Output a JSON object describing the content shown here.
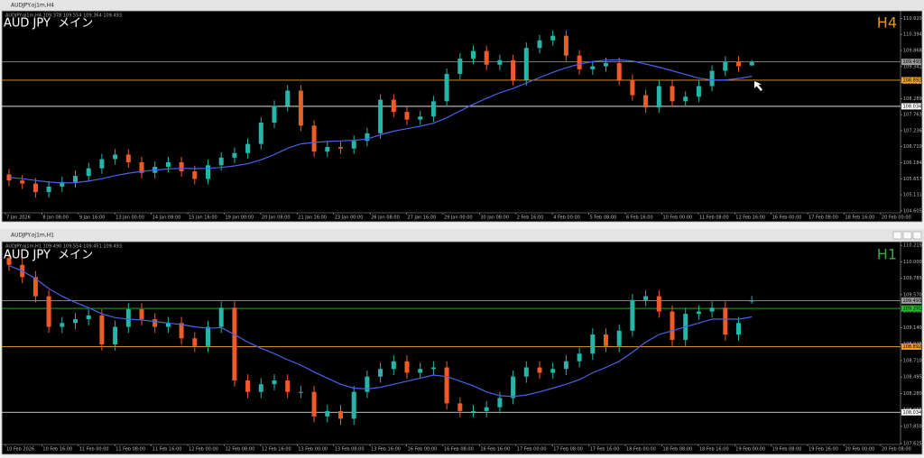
{
  "chart_data": [
    {
      "type": "candlestick",
      "window_title": "AUDJPY.oj1m,H4",
      "info": "AUDJPY.oj1m,H4 109.378 109.554 109.364 109.493",
      "symbol_label": "AUD JPY  メイン",
      "timeframe": "H4",
      "timeframe_color": "#e8961e",
      "up_color": "#26b5a8",
      "down_color": "#f05a28",
      "grid": false,
      "ylim": [
        104.57,
        111.11
      ],
      "yticks": [
        {
          "value": 110.92,
          "label": "110.920"
        },
        {
          "value": 110.394,
          "label": "110.394"
        },
        {
          "value": 109.868,
          "label": "109.868"
        },
        {
          "value": 109.341,
          "label": "109.341"
        },
        {
          "value": 108.815,
          "label": "108.815"
        },
        {
          "value": 108.289,
          "label": "108.289"
        },
        {
          "value": 107.763,
          "label": "107.763"
        },
        {
          "value": 107.236,
          "label": "107.236"
        },
        {
          "value": 106.71,
          "label": "106.710"
        },
        {
          "value": 106.184,
          "label": "106.184"
        },
        {
          "value": 105.657,
          "label": "105.657"
        },
        {
          "value": 105.131,
          "label": "105.131"
        },
        {
          "value": 104.605,
          "label": "104.605"
        }
      ],
      "levels": [
        {
          "value": 109.493,
          "label": "109.493",
          "color": "#9a9a9a"
        },
        {
          "value": 108.892,
          "label": "108.892",
          "color": "#f0a020"
        },
        {
          "value": 108.034,
          "label": "108.034",
          "color": "#ffffff"
        }
      ],
      "x_labels": [
        "7 Jan 2026",
        "8 Jan 08:00",
        "9 Jan 16:00",
        "13 Jan 00:00",
        "14 Jan 08:00",
        "15 Jan 16:00",
        "19 Jan 00:00",
        "20 Jan 08:00",
        "21 Jan 16:00",
        "23 Jan 00:00",
        "26 Jan 08:00",
        "27 Jan 16:00",
        "29 Jan 00:00",
        "30 Jan 08:00",
        "2 Feb 16:00",
        "4 Feb 00:00",
        "5 Feb 08:00",
        "6 Feb 16:00",
        "10 Feb 00:00",
        "11 Feb 08:00",
        "12 Feb 16:00",
        "16 Feb 00:00",
        "17 Feb 08:00",
        "18 Feb 16:00",
        "20 Feb 00:00"
      ],
      "open": [
        105.8,
        105.6,
        105.5,
        105.22,
        105.4,
        105.55,
        105.75,
        106.0,
        106.3,
        106.45,
        106.2,
        105.85,
        106.05,
        106.2,
        105.9,
        105.65,
        106.1,
        106.35,
        106.5,
        106.8,
        107.5,
        108.05,
        108.55,
        107.4,
        106.55,
        106.7,
        106.65,
        106.9,
        107.15,
        108.25,
        107.85,
        107.6,
        107.7,
        108.2,
        109.1,
        109.6,
        109.85,
        109.4,
        109.55,
        108.9,
        109.95,
        110.2,
        110.35,
        109.7,
        109.25,
        109.35,
        109.45,
        108.9,
        108.4,
        108.0,
        108.7,
        108.2,
        108.35,
        108.7,
        109.2,
        109.5,
        109.378
      ],
      "high": [
        105.98,
        105.78,
        105.68,
        105.58,
        105.73,
        105.93,
        106.18,
        106.48,
        106.63,
        106.63,
        106.38,
        106.23,
        106.38,
        106.38,
        106.08,
        106.28,
        106.53,
        106.68,
        106.98,
        107.68,
        108.23,
        108.73,
        108.73,
        107.58,
        106.88,
        106.88,
        107.08,
        107.33,
        108.43,
        108.43,
        108.03,
        107.88,
        108.38,
        109.28,
        109.78,
        110.03,
        110.03,
        109.73,
        109.73,
        110.13,
        110.38,
        110.53,
        110.53,
        109.88,
        109.53,
        109.63,
        109.63,
        109.08,
        108.58,
        108.88,
        108.88,
        108.53,
        108.88,
        109.38,
        109.68,
        109.68,
        109.554
      ],
      "low": [
        105.42,
        105.32,
        105.04,
        105.04,
        105.22,
        105.37,
        105.57,
        105.82,
        106.12,
        106.02,
        105.67,
        105.67,
        105.87,
        105.72,
        105.47,
        105.47,
        105.92,
        106.17,
        106.32,
        106.62,
        107.32,
        107.87,
        107.22,
        106.37,
        106.37,
        106.47,
        106.47,
        106.72,
        106.97,
        107.67,
        107.42,
        107.42,
        107.52,
        108.02,
        108.92,
        109.42,
        109.22,
        109.22,
        108.72,
        108.72,
        109.77,
        110.02,
        109.52,
        109.07,
        109.07,
        109.17,
        108.72,
        108.22,
        107.82,
        107.82,
        108.02,
        108.02,
        108.17,
        108.52,
        109.02,
        109.17,
        109.364
      ],
      "close": [
        105.6,
        105.5,
        105.22,
        105.4,
        105.55,
        105.75,
        106.0,
        106.3,
        106.45,
        106.2,
        105.85,
        106.05,
        106.2,
        105.9,
        105.65,
        106.1,
        106.35,
        106.5,
        106.8,
        107.5,
        108.05,
        108.55,
        107.4,
        106.55,
        106.7,
        106.65,
        106.9,
        107.15,
        108.25,
        107.85,
        107.6,
        107.7,
        108.2,
        109.1,
        109.6,
        109.85,
        109.4,
        109.55,
        108.9,
        109.95,
        110.2,
        110.35,
        109.7,
        109.25,
        109.35,
        109.45,
        108.9,
        108.4,
        108.0,
        108.7,
        108.2,
        108.35,
        108.7,
        109.2,
        109.5,
        109.35,
        109.493
      ],
      "ma": {
        "color": "#4a62e8",
        "values": [
          105.7,
          105.66,
          105.6,
          105.55,
          105.52,
          105.53,
          105.58,
          105.66,
          105.76,
          105.84,
          105.9,
          105.94,
          105.98,
          106.0,
          105.99,
          106.0,
          106.03,
          106.08,
          106.15,
          106.28,
          106.45,
          106.66,
          106.8,
          106.85,
          106.88,
          106.9,
          106.92,
          106.96,
          107.1,
          107.22,
          107.3,
          107.38,
          107.48,
          107.66,
          107.88,
          108.1,
          108.3,
          108.48,
          108.62,
          108.8,
          108.98,
          109.15,
          109.3,
          109.42,
          109.5,
          109.55,
          109.56,
          109.52,
          109.42,
          109.32,
          109.2,
          109.08,
          108.96,
          108.9,
          108.9,
          108.95,
          109.02
        ]
      }
    },
    {
      "type": "candlestick",
      "window_title": "AUDJPY.oj1m,H1",
      "info": "AUDJPY.oj1m,H1 109.490 109.554 109.451 109.493",
      "symbol_label": "AUD JPY  メイン",
      "timeframe": "H1",
      "timeframe_color": "#3aa84a",
      "up_color": "#26b5a8",
      "down_color": "#f05a28",
      "grid": false,
      "ylim": [
        107.625,
        110.24
      ],
      "yticks": [
        {
          "value": 110.215,
          "label": "110.215"
        },
        {
          "value": 110,
          "label": "110.000"
        },
        {
          "value": 109.785,
          "label": "109.785"
        },
        {
          "value": 109.57,
          "label": "109.570"
        },
        {
          "value": 109.355,
          "label": "109.355"
        },
        {
          "value": 109.14,
          "label": "109.140"
        },
        {
          "value": 108.925,
          "label": "108.925"
        },
        {
          "value": 108.71,
          "label": "108.710"
        },
        {
          "value": 108.495,
          "label": "108.495"
        },
        {
          "value": 108.28,
          "label": "108.280"
        },
        {
          "value": 108.065,
          "label": "108.065"
        },
        {
          "value": 107.85,
          "label": "107.850"
        },
        {
          "value": 107.625,
          "label": "107.625"
        }
      ],
      "levels": [
        {
          "value": 109.493,
          "label": "109.493",
          "color": "#9a9a9a"
        },
        {
          "value": 109.391,
          "label": "109.391",
          "color": "#2eb82e"
        },
        {
          "value": 108.892,
          "label": "108.892",
          "color": "#f0a020"
        },
        {
          "value": 108.034,
          "label": "108.034",
          "color": "#ffffff"
        }
      ],
      "x_labels": [
        "10 Feb 2026",
        "10 Feb 16:00",
        "11 Feb 00:00",
        "11 Feb 08:00",
        "11 Feb 16:00",
        "12 Feb 00:00",
        "12 Feb 08:00",
        "12 Feb 16:00",
        "13 Feb 00:00",
        "13 Feb 08:00",
        "13 Feb 16:00",
        "16 Feb 00:00",
        "16 Feb 08:00",
        "16 Feb 16:00",
        "17 Feb 00:00",
        "17 Feb 08:00",
        "17 Feb 16:00",
        "18 Feb 00:00",
        "18 Feb 08:00",
        "18 Feb 16:00",
        "19 Feb 00:00",
        "19 Feb 08:00",
        "19 Feb 16:00",
        "20 Feb 00:00",
        "20 Feb 08:00"
      ],
      "open": [
        110.05,
        109.96,
        109.8,
        109.55,
        109.15,
        109.2,
        109.25,
        109.3,
        108.92,
        109.15,
        109.38,
        109.25,
        109.15,
        109.2,
        109.0,
        108.9,
        109.15,
        109.4,
        108.45,
        108.3,
        108.4,
        108.45,
        108.3,
        108.3,
        107.98,
        108.05,
        107.95,
        108.3,
        108.5,
        108.6,
        108.7,
        108.55,
        108.6,
        108.62,
        108.15,
        108.05,
        108.05,
        108.1,
        108.22,
        108.5,
        108.62,
        108.55,
        108.6,
        108.7,
        108.8,
        109.05,
        108.9,
        109.1,
        109.5,
        109.55,
        109.35,
        108.98,
        109.32,
        109.35,
        109.4,
        109.05,
        109.49
      ],
      "high": [
        110.13,
        110.04,
        109.88,
        109.63,
        109.28,
        109.33,
        109.38,
        109.38,
        109.23,
        109.46,
        109.46,
        109.33,
        109.28,
        109.28,
        109.08,
        109.23,
        109.48,
        109.48,
        108.53,
        108.48,
        108.53,
        108.53,
        108.38,
        108.38,
        108.13,
        108.13,
        108.38,
        108.58,
        108.68,
        108.78,
        108.78,
        108.68,
        108.7,
        108.7,
        108.23,
        108.13,
        108.18,
        108.3,
        108.58,
        108.7,
        108.7,
        108.68,
        108.78,
        108.88,
        109.13,
        109.13,
        109.18,
        109.58,
        109.63,
        109.63,
        109.43,
        109.4,
        109.43,
        109.48,
        109.48,
        109.28,
        109.554
      ],
      "low": [
        109.88,
        109.72,
        109.47,
        109.07,
        109.07,
        109.12,
        109.17,
        108.84,
        108.84,
        109.07,
        109.17,
        109.07,
        109.07,
        108.92,
        108.82,
        108.82,
        109.07,
        108.37,
        108.22,
        108.22,
        108.32,
        108.22,
        108.22,
        107.9,
        107.9,
        107.87,
        107.87,
        108.22,
        108.42,
        108.52,
        108.47,
        108.47,
        108.52,
        108.07,
        107.97,
        107.97,
        107.97,
        108.02,
        108.14,
        108.42,
        108.47,
        108.47,
        108.52,
        108.62,
        108.72,
        108.82,
        108.82,
        109.02,
        109.42,
        109.27,
        108.9,
        108.9,
        109.24,
        109.27,
        108.97,
        108.97,
        109.451
      ],
      "close": [
        109.96,
        109.8,
        109.55,
        109.15,
        109.2,
        109.25,
        109.3,
        108.92,
        109.15,
        109.38,
        109.25,
        109.15,
        109.2,
        109.0,
        108.9,
        109.15,
        109.4,
        108.45,
        108.3,
        108.4,
        108.45,
        108.3,
        108.3,
        107.98,
        108.05,
        107.95,
        108.3,
        108.5,
        108.6,
        108.7,
        108.55,
        108.6,
        108.62,
        108.15,
        108.05,
        108.05,
        108.1,
        108.22,
        108.5,
        108.62,
        108.55,
        108.6,
        108.7,
        108.8,
        109.05,
        108.9,
        109.1,
        109.5,
        109.55,
        109.35,
        108.98,
        109.32,
        109.35,
        109.4,
        109.05,
        109.2,
        109.493
      ],
      "ma": {
        "color": "#4a62e8",
        "values": [
          109.95,
          109.88,
          109.78,
          109.65,
          109.55,
          109.47,
          109.4,
          109.32,
          109.27,
          109.25,
          109.24,
          109.22,
          109.2,
          109.18,
          109.15,
          109.13,
          109.14,
          109.05,
          108.95,
          108.87,
          108.8,
          108.72,
          108.65,
          108.56,
          108.48,
          108.4,
          108.35,
          108.34,
          108.36,
          108.4,
          108.44,
          108.48,
          108.52,
          108.5,
          108.44,
          108.38,
          108.3,
          108.25,
          108.24,
          108.26,
          108.3,
          108.35,
          108.4,
          108.46,
          108.55,
          108.62,
          108.7,
          108.82,
          108.95,
          109.05,
          109.1,
          109.15,
          109.2,
          109.25,
          109.25,
          109.25,
          109.28
        ]
      }
    }
  ]
}
